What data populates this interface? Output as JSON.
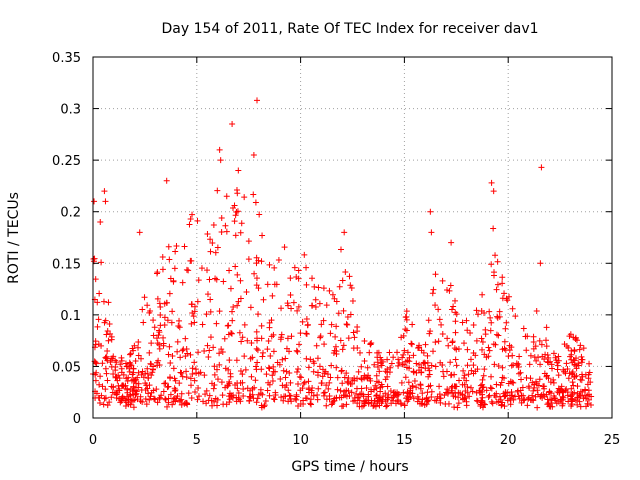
{
  "chart_data": {
    "type": "scatter",
    "title": "Day 154 of 2011, Rate Of TEC Index for receiver dav1",
    "xlabel": "GPS time / hours",
    "ylabel": "ROTI / TECUs",
    "xlim": [
      0,
      25
    ],
    "ylim": [
      0,
      0.35
    ],
    "xticks": [
      0,
      5,
      10,
      15,
      20,
      25
    ],
    "yticks": [
      0,
      0.05,
      0.1,
      0.15,
      0.2,
      0.25,
      0.3,
      0.35
    ],
    "xtick_labels": [
      "0",
      "5",
      "10",
      "15",
      "20",
      "25"
    ],
    "ytick_labels": [
      "0",
      "0.05",
      "0.1",
      "0.15",
      "0.2",
      "0.25",
      "0.3",
      "0.35"
    ],
    "grid": true,
    "marker": "plus",
    "color": "#ff0000",
    "series": [
      {
        "envelope": [
          [
            0.0,
            0.16
          ],
          [
            0.2,
            0.21
          ],
          [
            0.5,
            0.12
          ],
          [
            0.8,
            0.1
          ],
          [
            1.0,
            0.06
          ],
          [
            1.5,
            0.05
          ],
          [
            2.0,
            0.07
          ],
          [
            2.5,
            0.12
          ],
          [
            3.0,
            0.14
          ],
          [
            3.5,
            0.17
          ],
          [
            4.0,
            0.16
          ],
          [
            4.5,
            0.18
          ],
          [
            5.0,
            0.2
          ],
          [
            5.5,
            0.2
          ],
          [
            6.0,
            0.24
          ],
          [
            6.5,
            0.22
          ],
          [
            7.0,
            0.23
          ],
          [
            7.5,
            0.24
          ],
          [
            8.0,
            0.2
          ],
          [
            8.5,
            0.17
          ],
          [
            9.0,
            0.19
          ],
          [
            9.5,
            0.16
          ],
          [
            10.0,
            0.16
          ],
          [
            10.5,
            0.14
          ],
          [
            11.0,
            0.13
          ],
          [
            11.5,
            0.12
          ],
          [
            12.0,
            0.16
          ],
          [
            12.5,
            0.12
          ],
          [
            13.0,
            0.08
          ],
          [
            13.5,
            0.07
          ],
          [
            14.0,
            0.06
          ],
          [
            14.5,
            0.05
          ],
          [
            15.0,
            0.1
          ],
          [
            15.5,
            0.09
          ],
          [
            16.0,
            0.08
          ],
          [
            16.5,
            0.15
          ],
          [
            17.0,
            0.13
          ],
          [
            17.5,
            0.12
          ],
          [
            18.0,
            0.09
          ],
          [
            18.5,
            0.1
          ],
          [
            19.0,
            0.13
          ],
          [
            19.3,
            0.2
          ],
          [
            19.6,
            0.14
          ],
          [
            20.0,
            0.12
          ],
          [
            20.5,
            0.09
          ],
          [
            21.0,
            0.08
          ],
          [
            21.5,
            0.1
          ],
          [
            22.0,
            0.07
          ],
          [
            22.5,
            0.06
          ],
          [
            23.0,
            0.08
          ],
          [
            23.5,
            0.07
          ],
          [
            24.0,
            0.04
          ]
        ],
        "floor": 0.01,
        "sample_count": 1500,
        "outliers": [
          [
            0.05,
            0.21
          ],
          [
            0.35,
            0.19
          ],
          [
            0.55,
            0.22
          ],
          [
            0.6,
            0.21
          ],
          [
            2.25,
            0.18
          ],
          [
            3.55,
            0.23
          ],
          [
            6.1,
            0.26
          ],
          [
            6.15,
            0.25
          ],
          [
            6.7,
            0.285
          ],
          [
            7.9,
            0.308
          ],
          [
            7.75,
            0.255
          ],
          [
            7.0,
            0.24
          ],
          [
            12.1,
            0.18
          ],
          [
            16.25,
            0.2
          ],
          [
            16.3,
            0.18
          ],
          [
            17.25,
            0.17
          ],
          [
            19.2,
            0.228
          ],
          [
            19.3,
            0.22
          ],
          [
            21.6,
            0.243
          ],
          [
            21.55,
            0.15
          ]
        ]
      }
    ]
  }
}
